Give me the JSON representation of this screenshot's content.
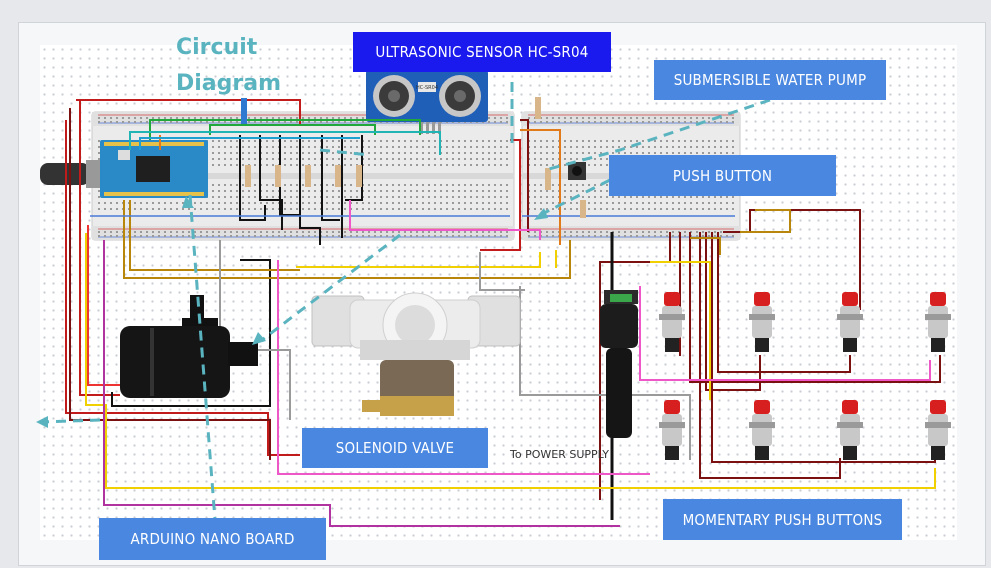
{
  "title": {
    "line1": "Circuit",
    "line2": "Diagram"
  },
  "labels": {
    "ultrasonic": "ULTRASONIC SENSOR HC-SR04",
    "pump": "SUBMERSIBLE WATER PUMP",
    "push_button": "PUSH BUTTON",
    "solenoid": "SOLENOID VALVE",
    "arduino": "ARDUINO NANO BOARD",
    "momentary": "MOMENTARY PUSH BUTTONS"
  },
  "power_caption": "To POWER SUPPLY",
  "sensor_chip": "HC-SR04",
  "colors": {
    "label_blue": "#4a87e0",
    "label_navy": "#1a1aee",
    "title_teal": "#5ab4c0",
    "leader_dash": "#5ab4c0",
    "arduino_board": "#2a8ac8",
    "button_red": "#d81f1f"
  }
}
